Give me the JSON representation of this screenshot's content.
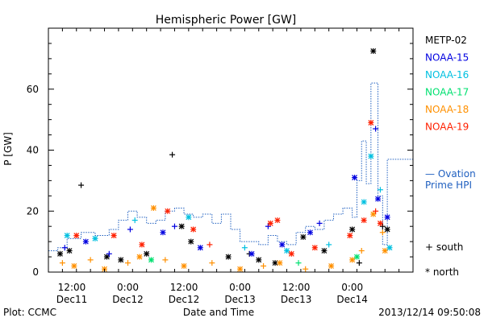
{
  "chart_data": {
    "type": "scatter",
    "title": "Hemispheric Power [GW]",
    "xlabel": "Date and Time",
    "ylabel": "P [GW]",
    "xlim": [
      "2013-12-11T07:00",
      "2013-12-14T13:00"
    ],
    "ylim": [
      0,
      80
    ],
    "y_ticks": [
      0,
      20,
      40,
      60
    ],
    "x_ticks": [
      {
        "time": "2013-12-11T12:00",
        "label1": "12:00",
        "label2": "Dec11"
      },
      {
        "time": "2013-12-12T00:00",
        "label1": "0:00",
        "label2": "Dec12"
      },
      {
        "time": "2013-12-12T12:00",
        "label1": "12:00",
        "label2": "Dec12"
      },
      {
        "time": "2013-12-13T00:00",
        "label1": "0:00",
        "label2": "Dec13"
      },
      {
        "time": "2013-12-13T12:00",
        "label1": "12:00",
        "label2": "Dec13"
      },
      {
        "time": "2013-12-14T00:00",
        "label1": "0:00",
        "label2": "Dec14"
      }
    ],
    "legend_placement": "right",
    "grid": false,
    "series": [
      {
        "name": "METP-02",
        "color": "#000000",
        "points": [
          [
            "2013-12-11T09:30",
            6,
            "n"
          ],
          [
            "2013-12-11T11:30",
            7,
            "n"
          ],
          [
            "2013-12-11T14:00",
            28.5,
            "s"
          ],
          [
            "2013-12-11T19:30",
            5,
            "n"
          ],
          [
            "2013-12-11T22:30",
            4,
            "n"
          ],
          [
            "2013-12-12T04:00",
            6,
            "n"
          ],
          [
            "2013-12-12T09:30",
            38.5,
            "s"
          ],
          [
            "2013-12-12T11:30",
            15,
            "n"
          ],
          [
            "2013-12-12T13:30",
            10,
            "n"
          ],
          [
            "2013-12-12T21:30",
            5,
            "n"
          ],
          [
            "2013-12-13T02:00",
            6,
            "s"
          ],
          [
            "2013-12-13T04:00",
            4,
            "n"
          ],
          [
            "2013-12-13T07:30",
            3,
            "n"
          ],
          [
            "2013-12-13T13:30",
            11.5,
            "n"
          ],
          [
            "2013-12-13T18:00",
            7,
            "n"
          ],
          [
            "2013-12-14T00:00",
            14,
            "n"
          ],
          [
            "2013-12-14T01:30",
            3,
            "s"
          ],
          [
            "2013-12-14T04:30",
            72.5,
            "n"
          ],
          [
            "2013-12-14T06:30",
            15,
            "s"
          ],
          [
            "2013-12-14T07:30",
            14,
            "n"
          ]
        ]
      },
      {
        "name": "NOAA-15",
        "color": "#0000e0",
        "points": [
          [
            "2013-12-11T10:30",
            8,
            "s"
          ],
          [
            "2013-12-11T15:00",
            10,
            "n"
          ],
          [
            "2013-12-11T20:00",
            6,
            "s"
          ],
          [
            "2013-12-12T00:30",
            14,
            "s"
          ],
          [
            "2013-12-12T07:30",
            13,
            "n"
          ],
          [
            "2013-12-12T10:00",
            15,
            "s"
          ],
          [
            "2013-12-12T15:30",
            8,
            "n"
          ],
          [
            "2013-12-13T02:30",
            6,
            "n"
          ],
          [
            "2013-12-13T06:00",
            15,
            "s"
          ],
          [
            "2013-12-13T09:00",
            9,
            "n"
          ],
          [
            "2013-12-13T15:00",
            13,
            "n"
          ],
          [
            "2013-12-13T17:00",
            16,
            "s"
          ],
          [
            "2013-12-14T00:30",
            31,
            "n"
          ],
          [
            "2013-12-14T05:00",
            47,
            "s"
          ],
          [
            "2013-12-14T05:30",
            24,
            "n"
          ],
          [
            "2013-12-14T07:30",
            18,
            "n"
          ]
        ]
      },
      {
        "name": "NOAA-16",
        "color": "#00c0e0",
        "points": [
          [
            "2013-12-11T11:00",
            12,
            "n"
          ],
          [
            "2013-12-11T17:00",
            11,
            "n"
          ],
          [
            "2013-12-12T01:30",
            17,
            "s"
          ],
          [
            "2013-12-12T13:00",
            18,
            "n"
          ],
          [
            "2013-12-13T01:00",
            8,
            "s"
          ],
          [
            "2013-12-13T10:00",
            7,
            "n"
          ],
          [
            "2013-12-13T19:00",
            9,
            "s"
          ],
          [
            "2013-12-14T02:30",
            23,
            "n"
          ],
          [
            "2013-12-14T04:00",
            38,
            "n"
          ],
          [
            "2013-12-14T06:00",
            27,
            "s"
          ],
          [
            "2013-12-14T08:00",
            8,
            "n"
          ]
        ]
      },
      {
        "name": "NOAA-17",
        "color": "#00e070",
        "points": [
          [
            "2013-12-12T05:00",
            4,
            "n"
          ],
          [
            "2013-12-13T12:30",
            3,
            "s"
          ],
          [
            "2013-12-14T01:00",
            5,
            "n"
          ]
        ]
      },
      {
        "name": "NOAA-18",
        "color": "#ff9000",
        "points": [
          [
            "2013-12-11T10:00",
            3,
            "s"
          ],
          [
            "2013-12-11T12:30",
            2,
            "n"
          ],
          [
            "2013-12-11T16:00",
            4,
            "s"
          ],
          [
            "2013-12-11T19:00",
            1,
            "n"
          ],
          [
            "2013-12-12T00:00",
            3,
            "s"
          ],
          [
            "2013-12-12T02:30",
            5,
            "n"
          ],
          [
            "2013-12-12T05:30",
            21,
            "n"
          ],
          [
            "2013-12-12T08:00",
            4,
            "s"
          ],
          [
            "2013-12-12T12:00",
            2,
            "n"
          ],
          [
            "2013-12-12T18:00",
            3,
            "s"
          ],
          [
            "2013-12-13T00:00",
            1,
            "n"
          ],
          [
            "2013-12-13T05:00",
            2,
            "s"
          ],
          [
            "2013-12-13T08:30",
            3,
            "n"
          ],
          [
            "2013-12-13T14:00",
            1,
            "s"
          ],
          [
            "2013-12-13T19:30",
            2,
            "n"
          ],
          [
            "2013-12-14T00:00",
            4,
            "n"
          ],
          [
            "2013-12-14T02:00",
            7,
            "s"
          ],
          [
            "2013-12-14T04:30",
            19,
            "n"
          ],
          [
            "2013-12-14T06:30",
            13,
            "s"
          ],
          [
            "2013-12-14T07:00",
            7,
            "n"
          ]
        ]
      },
      {
        "name": "NOAA-19",
        "color": "#ff2000",
        "points": [
          [
            "2013-12-11T13:00",
            12,
            "n"
          ],
          [
            "2013-12-11T21:00",
            12,
            "n"
          ],
          [
            "2013-12-12T03:00",
            9,
            "n"
          ],
          [
            "2013-12-12T08:30",
            20,
            "n"
          ],
          [
            "2013-12-12T14:00",
            14,
            "n"
          ],
          [
            "2013-12-12T17:30",
            9,
            "s"
          ],
          [
            "2013-12-13T06:30",
            16,
            "n"
          ],
          [
            "2013-12-13T08:00",
            17,
            "n"
          ],
          [
            "2013-12-13T11:00",
            6,
            "n"
          ],
          [
            "2013-12-13T16:00",
            8,
            "n"
          ],
          [
            "2013-12-13T23:30",
            12,
            "n"
          ],
          [
            "2013-12-14T02:30",
            17,
            "n"
          ],
          [
            "2013-12-14T04:00",
            49,
            "n"
          ],
          [
            "2013-12-14T05:00",
            20,
            "s"
          ],
          [
            "2013-12-14T06:00",
            16,
            "n"
          ]
        ]
      }
    ],
    "ovation": {
      "name": "— Ovation Prime HPI",
      "color": "#2060c0",
      "steps": [
        [
          "2013-12-11T07:00",
          7
        ],
        [
          "2013-12-11T09:00",
          8
        ],
        [
          "2013-12-11T11:00",
          11
        ],
        [
          "2013-12-11T14:00",
          13
        ],
        [
          "2013-12-11T17:00",
          12
        ],
        [
          "2013-12-11T20:00",
          14
        ],
        [
          "2013-12-11T22:00",
          17
        ],
        [
          "2013-12-12T00:00",
          20
        ],
        [
          "2013-12-12T02:00",
          18
        ],
        [
          "2013-12-12T04:00",
          16
        ],
        [
          "2013-12-12T06:00",
          17
        ],
        [
          "2013-12-12T08:00",
          20
        ],
        [
          "2013-12-12T10:00",
          21
        ],
        [
          "2013-12-12T12:00",
          19
        ],
        [
          "2013-12-12T14:00",
          18
        ],
        [
          "2013-12-12T16:00",
          19
        ],
        [
          "2013-12-12T18:00",
          16
        ],
        [
          "2013-12-12T20:00",
          19
        ],
        [
          "2013-12-12T22:00",
          14
        ],
        [
          "2013-12-13T00:00",
          10
        ],
        [
          "2013-12-13T04:00",
          9
        ],
        [
          "2013-12-13T06:00",
          12
        ],
        [
          "2013-12-13T08:00",
          10
        ],
        [
          "2013-12-13T10:00",
          9
        ],
        [
          "2013-12-13T12:00",
          13
        ],
        [
          "2013-12-13T14:00",
          15
        ],
        [
          "2013-12-13T16:00",
          14
        ],
        [
          "2013-12-13T18:00",
          17
        ],
        [
          "2013-12-13T20:00",
          19
        ],
        [
          "2013-12-13T22:00",
          21
        ],
        [
          "2013-12-14T00:00",
          18
        ],
        [
          "2013-12-14T01:00",
          30
        ],
        [
          "2013-12-14T02:00",
          43
        ],
        [
          "2013-12-14T03:00",
          29
        ],
        [
          "2013-12-14T04:00",
          62
        ],
        [
          "2013-12-14T05:30",
          25
        ],
        [
          "2013-12-14T06:30",
          9
        ],
        [
          "2013-12-14T07:30",
          37
        ],
        [
          "2013-12-14T08:30",
          37
        ]
      ]
    },
    "symbols": {
      "south": "+ south",
      "north": "* north"
    }
  },
  "footer": {
    "plot_credit": "Plot: CCMC",
    "timestamp": "2013/12/14 09:50:08"
  }
}
